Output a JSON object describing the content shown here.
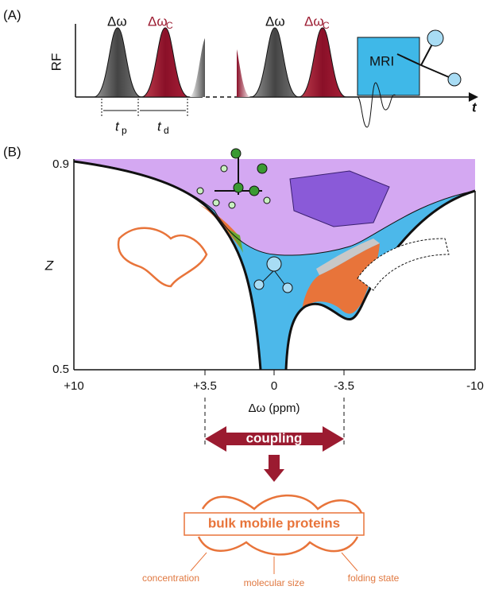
{
  "panel_a": {
    "label": "(A)",
    "y_axis": "RF",
    "x_axis": "t",
    "delta": "Δω",
    "delta_c": "Δω",
    "sub_c": "C",
    "tp": "t",
    "tp_sub": "p",
    "td": "t",
    "td_sub": "d",
    "mri": "MRI"
  },
  "panel_b": {
    "label": "(B)",
    "y_axis": "Z",
    "y_ticks": [
      "0.9",
      "0.5"
    ],
    "x_ticks": [
      "+10",
      "+3.5",
      "0",
      "-3.5",
      "-10"
    ],
    "x_axis": "Δω (ppm)"
  },
  "bottom": {
    "coupling": "coupling",
    "box": "bulk mobile proteins",
    "annotations": [
      "concentration",
      "molecular size",
      "folding state"
    ]
  }
}
